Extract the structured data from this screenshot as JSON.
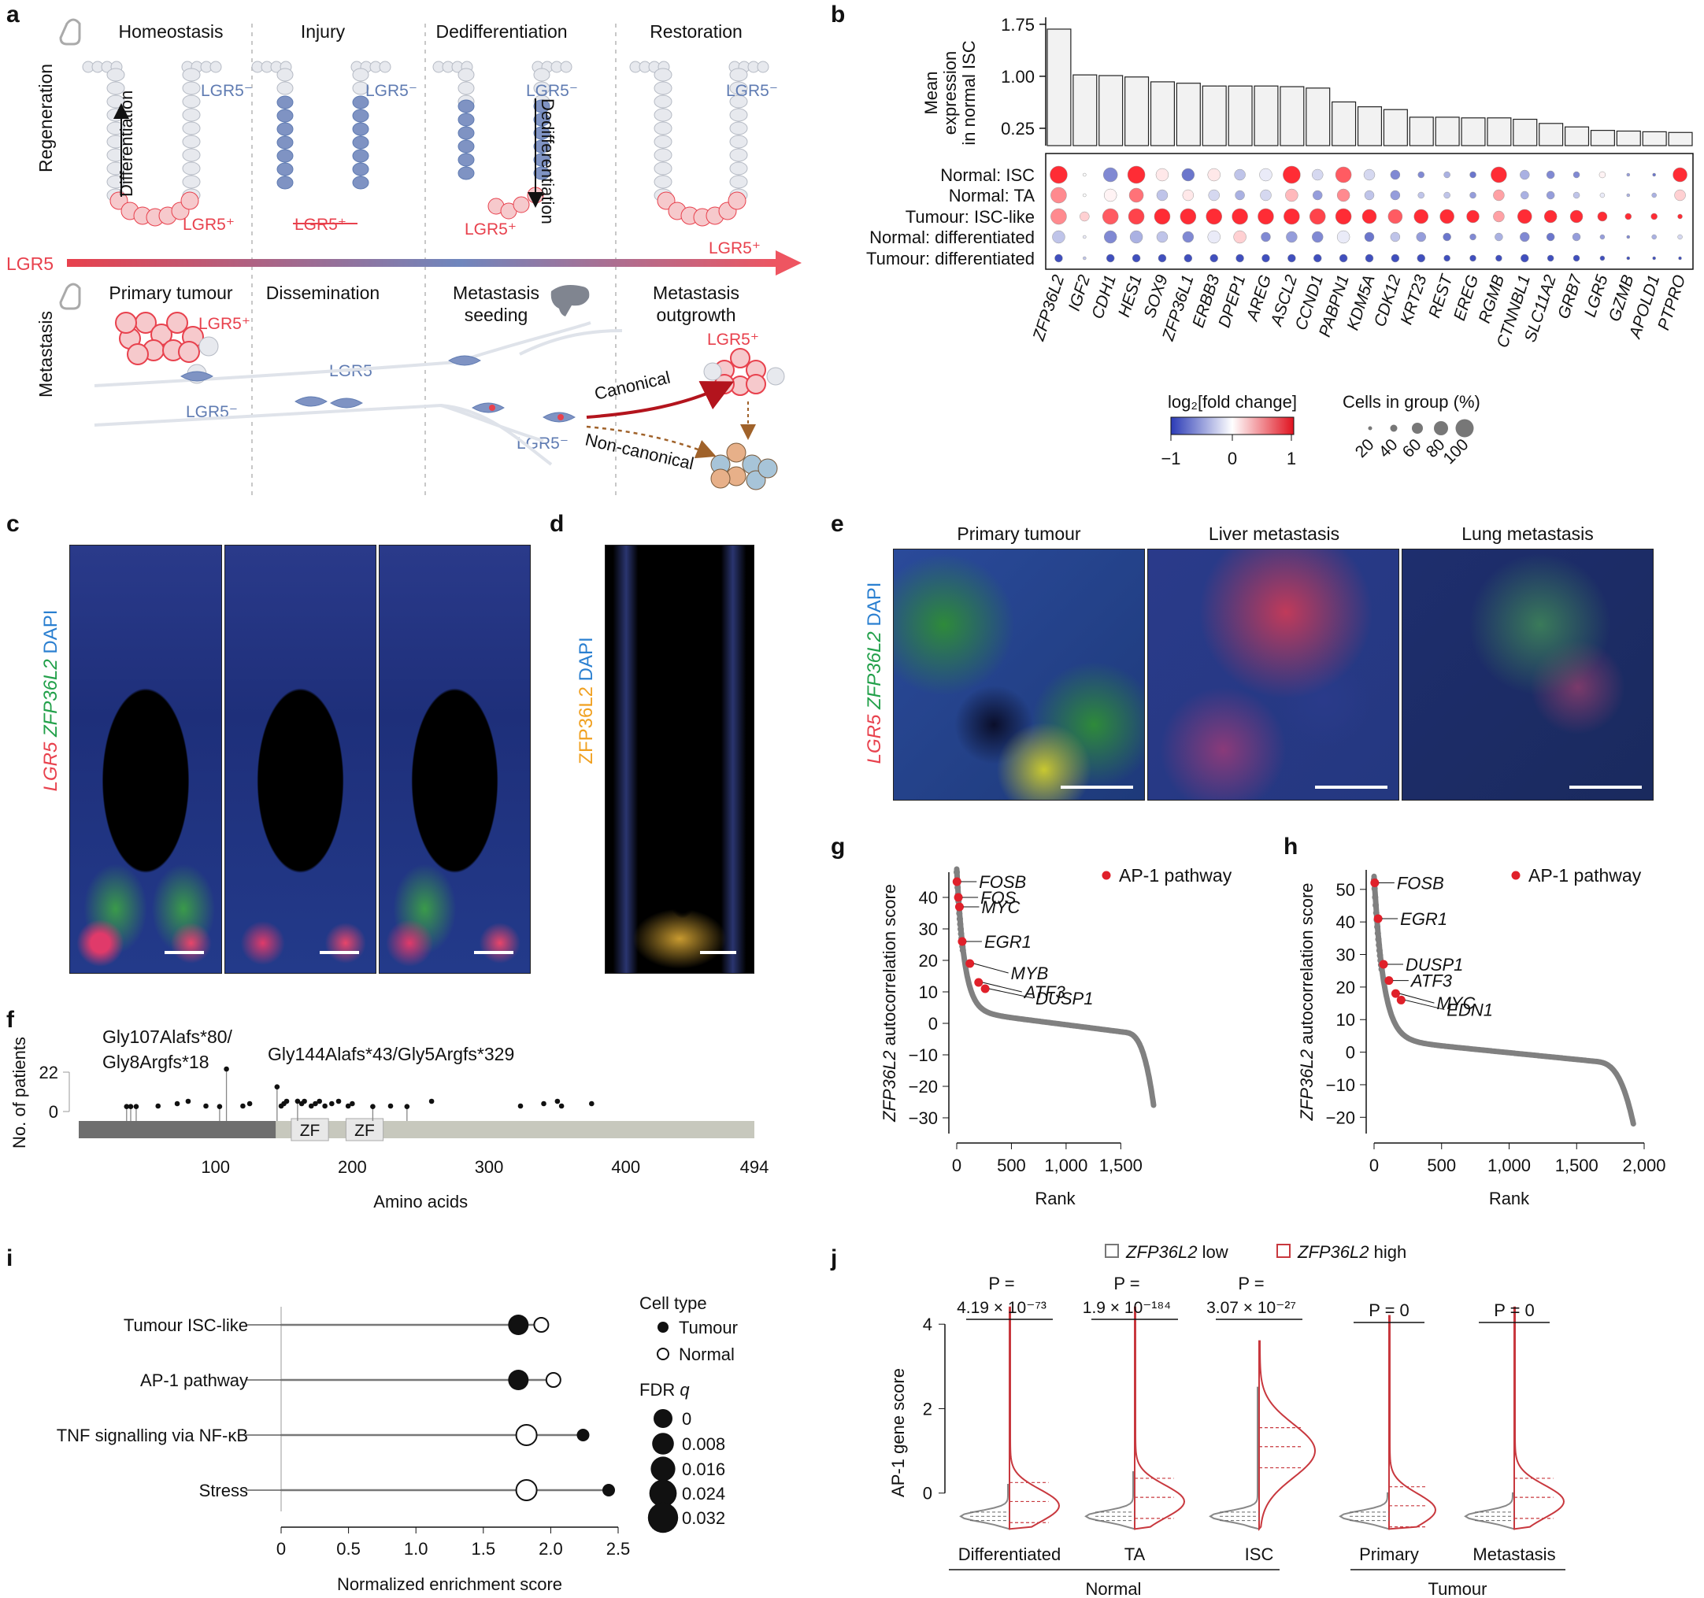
{
  "panel_labels": {
    "a": "a",
    "b": "b",
    "c": "c",
    "d": "d",
    "e": "e",
    "f": "f",
    "g": "g",
    "h": "h",
    "i": "i",
    "j": "j"
  },
  "panel_a": {
    "stages_top": [
      "Homeostasis",
      "Injury",
      "Dedifferentiation",
      "Restoration"
    ],
    "stages_bottom": [
      "Primary tumour",
      "Dissemination",
      "Metastasis\nseeding",
      "Metastasis\noutgrowth"
    ],
    "row_labels": {
      "top": "Regeneration",
      "bottom": "Metastasis"
    },
    "arrow_label": "LGR5",
    "side_arrows": {
      "left": "Differentiation",
      "right": "Dedifferentiation"
    },
    "lgr5_neg": "LGR5⁻",
    "lgr5_pos": "LGR5⁺",
    "paths": {
      "canonical": "Canonical",
      "noncanonical": "Non-canonical"
    },
    "colors": {
      "red": "#e8414d",
      "blue": "#5f7bb2",
      "grey": "#c9cdd4"
    }
  },
  "panel_b": {
    "bar_ylabel": [
      "Mean",
      "expression",
      "in normal ISC"
    ],
    "bar_ticks": [
      "1.75",
      "1.00",
      "0.25"
    ],
    "rows": [
      "Normal: ISC",
      "Normal: TA",
      "Tumour: ISC-like",
      "Normal: differentiated",
      "Tumour: differentiated"
    ],
    "genes": [
      "ZFP36L2",
      "IGF2",
      "CDH1",
      "HES1",
      "SOX9",
      "ZFP36L1",
      "ERBB3",
      "DPEP1",
      "AREG",
      "ASCL2",
      "CCND1",
      "PABPN1",
      "KDM5A",
      "CDK12",
      "KRT23",
      "REST",
      "EREG",
      "RGMB",
      "CTNNBL1",
      "SLC11A2",
      "GRB7",
      "LGR5",
      "GZMB",
      "APOLD1",
      "PTPRO"
    ],
    "mean_expression": [
      1.68,
      1.02,
      1.01,
      0.99,
      0.92,
      0.9,
      0.86,
      0.86,
      0.86,
      0.85,
      0.83,
      0.63,
      0.56,
      0.52,
      0.41,
      0.41,
      0.4,
      0.4,
      0.38,
      0.32,
      0.27,
      0.22,
      0.21,
      0.2,
      0.19
    ],
    "legend_fc_title": "log₂[fold change]",
    "legend_fc_ticks": [
      "−1",
      "0",
      "1"
    ],
    "legend_size_title": "Cells in group (%)",
    "legend_size_ticks": [
      "20",
      "40",
      "60",
      "80",
      "100"
    ]
  },
  "panel_c": {
    "ylabel_parts": [
      "LGR5",
      "ZFP36L2",
      "DAPI"
    ]
  },
  "panel_d": {
    "ylabel_parts": [
      "ZFP36L2",
      "DAPI"
    ]
  },
  "panel_e": {
    "titles": [
      "Primary tumour",
      "Liver metastasis",
      "Lung metastasis"
    ],
    "ylabel_parts": [
      "LGR5",
      "ZFP36L2",
      "DAPI"
    ]
  },
  "panel_f": {
    "ylabel": "No. of patients",
    "xlabel": "Amino acids",
    "yticks": [
      "22",
      "0"
    ],
    "xticks": [
      "100",
      "200",
      "300",
      "400",
      "494"
    ],
    "annot1": [
      "Gly107Alafs*80/",
      "Gly8Argfs*18"
    ],
    "annot2": "Gly144Alafs*43/Gly5Argfs*329",
    "domains": [
      "ZF",
      "ZF"
    ],
    "mutation_positions": [
      35,
      38,
      42,
      58,
      72,
      80,
      93,
      103,
      108,
      120,
      125,
      145,
      148,
      150,
      152,
      160,
      163,
      165,
      170,
      173,
      176,
      180,
      185,
      190,
      197,
      200,
      215,
      228,
      240,
      258,
      323,
      340,
      350,
      353,
      375
    ],
    "mutation_counts": [
      1,
      1,
      1,
      0,
      0,
      0,
      0,
      1,
      22,
      0,
      0,
      12,
      0,
      0,
      0,
      4,
      0,
      0,
      0,
      0,
      0,
      0,
      0,
      0,
      0,
      0,
      1,
      0,
      1,
      0,
      0,
      0,
      0,
      0,
      0
    ]
  },
  "panel_g": {
    "ylabel_gene": "ZFP36L2",
    "ylabel_rest": " autocorrelation score",
    "xlabel": "Rank",
    "xticks": [
      "0",
      "500",
      "1,000",
      "1,500"
    ],
    "yticks": [
      "40",
      "30",
      "20",
      "10",
      "0",
      "−10",
      "−20",
      "−30"
    ],
    "legend": "AP-1 pathway",
    "highlighted_genes": [
      "FOSB",
      "FOS",
      "MYC",
      "EGR1",
      "MYB",
      "ATF3",
      "DUSP1"
    ],
    "highlighted_ranks": [
      2,
      15,
      25,
      50,
      120,
      200,
      260
    ],
    "highlighted_scores": [
      45,
      40,
      37,
      26,
      19,
      13,
      11
    ]
  },
  "panel_h": {
    "ylabel_gene": "ZFP36L2",
    "ylabel_rest": " autocorrelation score",
    "xlabel": "Rank",
    "xticks": [
      "0",
      "500",
      "1,000",
      "1,500",
      "2,000"
    ],
    "yticks": [
      "50",
      "40",
      "30",
      "20",
      "10",
      "0",
      "−10",
      "−20"
    ],
    "legend": "AP-1 pathway",
    "highlighted_genes": [
      "FOSB",
      "EGR1",
      "DUSP1",
      "ATF3",
      "MYC",
      "EDN1"
    ],
    "highlighted_ranks": [
      5,
      30,
      70,
      110,
      160,
      200
    ],
    "highlighted_scores": [
      52,
      41,
      27,
      22,
      18,
      16
    ]
  },
  "panel_i": {
    "categories": [
      "Tumour ISC-like",
      "AP-1 pathway",
      "TNF signalling via NF-κB",
      "Stress"
    ],
    "tumour_nes": [
      1.76,
      1.76,
      2.24,
      2.43
    ],
    "normal_nes": [
      1.93,
      2.02,
      1.82,
      1.82
    ],
    "xlabel": "Normalized enrichment score",
    "xticks": [
      "0",
      "0.5",
      "1.0",
      "1.5",
      "2.0",
      "2.5"
    ],
    "legend_type_title": "Cell type",
    "legend_types": [
      "Tumour",
      "Normal"
    ],
    "legend_fdr_title": "FDR q",
    "legend_fdr_ticks": [
      "0",
      "0.008",
      "0.016",
      "0.024",
      "0.032"
    ]
  },
  "panel_j": {
    "legend_low": "ZFP36L2 low",
    "legend_high": "ZFP36L2 high",
    "ylabel": "AP-1 gene score",
    "yticks": [
      "4",
      "2",
      "0"
    ],
    "groups": [
      "Differentiated",
      "TA",
      "ISC",
      "Primary",
      "Metastasis"
    ],
    "supergroups": [
      "Normal",
      "Tumour"
    ],
    "pvalues": [
      "4.19 × 10⁻⁷³",
      "1.9 × 10⁻¹⁸⁴",
      "3.07 × 10⁻²⁷",
      "P = 0",
      "P = 0"
    ],
    "p_prefix": "P ="
  }
}
